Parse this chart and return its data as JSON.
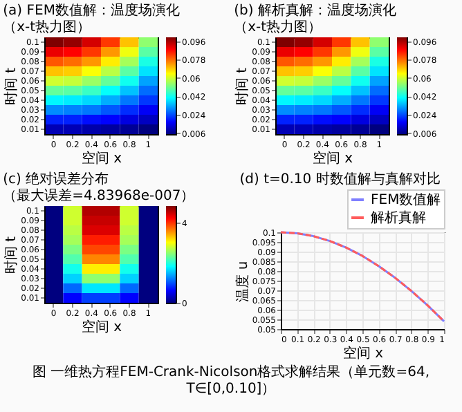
{
  "chart_data": [
    {
      "type": "heatmap",
      "title": "(a) FEM数值解：温度场演化（x-t热力图）",
      "xlabel": "空间 x",
      "ylabel": "时间 t",
      "clim": [
        0.005,
        0.1
      ],
      "cticks": [
        0.006,
        0.024,
        0.042,
        0.06,
        0.078,
        0.096
      ],
      "categories": [
        "0",
        "0.2",
        "0.4",
        "0.6",
        "0.8",
        "1"
      ],
      "y_categories": [
        "0.1",
        "0.09",
        "0.08",
        "0.07",
        "0.06",
        "0.05",
        "0.04",
        "0.03",
        "0.02",
        "0.01"
      ],
      "cells": [
        [
          0.1,
          0.098,
          0.092,
          0.083,
          0.07,
          0.054
        ],
        [
          0.09,
          0.088,
          0.083,
          0.074,
          0.063,
          0.049
        ],
        [
          0.08,
          0.078,
          0.074,
          0.066,
          0.056,
          0.043
        ],
        [
          0.07,
          0.069,
          0.064,
          0.058,
          0.049,
          0.038
        ],
        [
          0.06,
          0.059,
          0.055,
          0.05,
          0.042,
          0.032
        ],
        [
          0.05,
          0.049,
          0.046,
          0.041,
          0.035,
          0.027
        ],
        [
          0.04,
          0.039,
          0.037,
          0.033,
          0.028,
          0.022
        ],
        [
          0.03,
          0.029,
          0.028,
          0.025,
          0.021,
          0.016
        ],
        [
          0.02,
          0.02,
          0.018,
          0.017,
          0.014,
          0.011
        ],
        [
          0.01,
          0.01,
          0.009,
          0.008,
          0.007,
          0.005
        ]
      ]
    },
    {
      "type": "heatmap",
      "title": "(b) 解析真解：温度场演化（x-t热力图）",
      "xlabel": "空间 x",
      "ylabel": "时间 t",
      "clim": [
        0.005,
        0.1
      ],
      "cticks": [
        0.006,
        0.024,
        0.042,
        0.06,
        0.078,
        0.096
      ],
      "categories": [
        "0",
        "0.2",
        "0.4",
        "0.6",
        "0.8",
        "1"
      ],
      "y_categories": [
        "0.1",
        "0.09",
        "0.08",
        "0.07",
        "0.06",
        "0.05",
        "0.04",
        "0.03",
        "0.02",
        "0.01"
      ],
      "cells": [
        [
          0.1,
          0.098,
          0.092,
          0.083,
          0.07,
          0.054
        ],
        [
          0.09,
          0.088,
          0.083,
          0.074,
          0.063,
          0.049
        ],
        [
          0.08,
          0.078,
          0.074,
          0.066,
          0.056,
          0.043
        ],
        [
          0.07,
          0.069,
          0.064,
          0.058,
          0.049,
          0.038
        ],
        [
          0.06,
          0.059,
          0.055,
          0.05,
          0.042,
          0.032
        ],
        [
          0.05,
          0.049,
          0.046,
          0.041,
          0.035,
          0.027
        ],
        [
          0.04,
          0.039,
          0.037,
          0.033,
          0.028,
          0.022
        ],
        [
          0.03,
          0.029,
          0.028,
          0.025,
          0.021,
          0.016
        ],
        [
          0.02,
          0.02,
          0.018,
          0.017,
          0.014,
          0.011
        ],
        [
          0.01,
          0.01,
          0.009,
          0.008,
          0.007,
          0.005
        ]
      ]
    },
    {
      "type": "heatmap",
      "title": "(c) 绝对误差分布（最大误差=4.83968e-007）",
      "xlabel": "空间 x",
      "ylabel": "时间 t",
      "clim": [
        0,
        4.84
      ],
      "cticks": [
        0,
        4
      ],
      "categories": [
        "0",
        "0.2",
        "0.4",
        "0.6",
        "0.8",
        "1"
      ],
      "y_categories": [
        "0.1",
        "0.09",
        "0.08",
        "0.07",
        "0.06",
        "0.05",
        "0.04",
        "0.03",
        "0.02",
        "0.01"
      ],
      "cells": [
        [
          0,
          2.8,
          4.6,
          4.6,
          2.8,
          0
        ],
        [
          0,
          2.8,
          4.5,
          4.5,
          2.8,
          0
        ],
        [
          0,
          2.7,
          4.4,
          4.4,
          2.7,
          0
        ],
        [
          0,
          2.6,
          4.1,
          4.1,
          2.6,
          0
        ],
        [
          0,
          2.4,
          3.9,
          3.9,
          2.4,
          0
        ],
        [
          0,
          2.2,
          3.6,
          3.6,
          2.2,
          0
        ],
        [
          0,
          1.9,
          3.1,
          3.1,
          1.9,
          0
        ],
        [
          0,
          1.6,
          2.5,
          2.5,
          1.6,
          0
        ],
        [
          0,
          1.1,
          1.7,
          1.7,
          1.1,
          0
        ],
        [
          0,
          0.6,
          0.9,
          0.9,
          0.6,
          0
        ]
      ]
    },
    {
      "type": "line",
      "title": "(d) t=0.10 时数值解与真解对比",
      "xlabel": "空间 x",
      "ylabel": "温度 u",
      "xlim": [
        0,
        1
      ],
      "xticks": [
        0,
        0.1,
        0.2,
        0.3,
        0.4,
        0.5,
        0.6,
        0.7,
        0.8,
        0.9,
        1
      ],
      "ylim": [
        0.05,
        0.1
      ],
      "yticks": [
        0.05,
        0.055,
        0.06,
        0.065,
        0.07,
        0.075,
        0.08,
        0.085,
        0.09,
        0.095,
        0.1
      ],
      "grid": true,
      "legend": "top right",
      "x": [
        0,
        0.1,
        0.2,
        0.3,
        0.4,
        0.5,
        0.6,
        0.7,
        0.8,
        0.9,
        1
      ],
      "series": [
        {
          "name": "FEM数值解",
          "color": "#7f7fff",
          "line_style": "solid",
          "values": [
            0.1,
            0.0995,
            0.098,
            0.0955,
            0.0921,
            0.0878,
            0.0825,
            0.0765,
            0.0697,
            0.0622,
            0.054
          ]
        },
        {
          "name": "解析真解",
          "color": "#ff5c5c",
          "line_style": "dashed",
          "values": [
            0.1,
            0.0995,
            0.098,
            0.0955,
            0.0921,
            0.0878,
            0.0825,
            0.0765,
            0.0697,
            0.0622,
            0.054
          ]
        }
      ],
      "annotations": [
        "图 一维热方程FEM-Crank-Nicolson格式求解结果（单元数=64, T∈[0,0.10]）"
      ]
    }
  ]
}
